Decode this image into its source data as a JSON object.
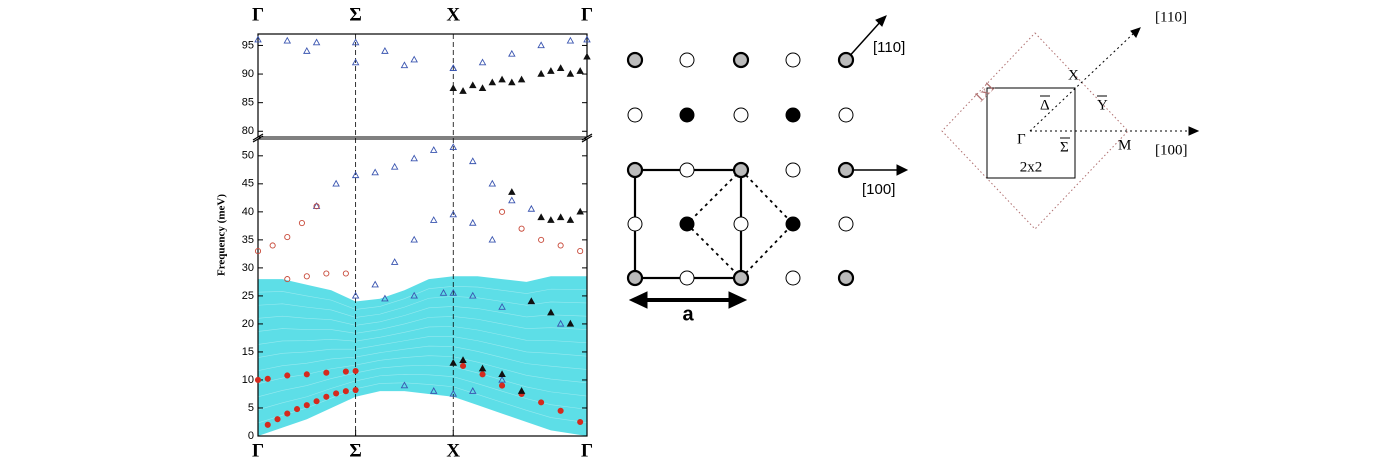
{
  "chart_data": {
    "type": "scatter",
    "y_label": "Frequency (meV)",
    "xlim": [
      0,
      3.37
    ],
    "xticks": [
      {
        "value": 0,
        "label": "Γ"
      },
      {
        "value": 1,
        "label": "Σ"
      },
      {
        "value": 2,
        "label": "X"
      },
      {
        "value": 3.37,
        "label": "Γ"
      }
    ],
    "ylim": [
      0,
      97
    ],
    "ybreak": [
      53,
      79
    ],
    "yticks": [
      0,
      5,
      10,
      15,
      20,
      25,
      30,
      35,
      40,
      45,
      50,
      80,
      85,
      90,
      95
    ],
    "band": {
      "color": "#27d3df",
      "x": [
        0,
        0.25,
        0.5,
        0.75,
        1,
        1.25,
        1.5,
        1.75,
        2,
        2.25,
        2.5,
        2.75,
        3,
        3.37
      ],
      "low": [
        0,
        1.5,
        3,
        5,
        7,
        8,
        8,
        7.5,
        7,
        5.5,
        4,
        2.5,
        1,
        0
      ],
      "high": [
        28,
        28,
        27,
        26,
        24,
        24.5,
        26,
        28,
        28.5,
        28.5,
        28,
        27.5,
        28.5,
        28.5
      ]
    },
    "series": [
      {
        "color": "#d42a1e",
        "marker": "circle-filled",
        "x": [
          0.1,
          0.2,
          0.3,
          0.4,
          0.5,
          0.6,
          0.7,
          0.8,
          0.9,
          1.0,
          0.0,
          0.1,
          0.3,
          0.5,
          0.7,
          0.9,
          1.0,
          2.1,
          2.3,
          2.5,
          2.7,
          2.9,
          3.1,
          3.3
        ],
        "values": [
          2,
          3,
          4,
          4.8,
          5.5,
          6.2,
          7,
          7.6,
          8,
          8.2,
          10,
          10.2,
          10.8,
          11,
          11.3,
          11.5,
          11.6,
          12.5,
          11,
          9,
          7.5,
          6,
          4.5,
          2.5
        ]
      },
      {
        "color": "#3a55b0",
        "marker": "triangle-open",
        "x": [
          0,
          0.3,
          0.6,
          1,
          1.3,
          1.6,
          2,
          2.3,
          2.6,
          2.9,
          3.2,
          3.37,
          0.5,
          1,
          1.5,
          2
        ],
        "values": [
          96,
          95.8,
          95.5,
          95.5,
          94,
          92.5,
          91,
          92,
          93.5,
          95,
          95.8,
          96,
          94,
          92,
          91.5,
          91
        ]
      },
      {
        "color": "#3a55b0",
        "marker": "triangle-open",
        "x": [
          0.6,
          0.8,
          1,
          1.2,
          1.4,
          1.6,
          1.8,
          2,
          2.2,
          2.4,
          2.6,
          2.8,
          1.2,
          1.4,
          1.6,
          1.8,
          2,
          2.2,
          2.4,
          1,
          1.3,
          1.6,
          1.9,
          2,
          2.2,
          2.5,
          2.8,
          3.1,
          1.5,
          1.8,
          2,
          2.2,
          2.5
        ],
        "values": [
          41,
          45,
          46.5,
          47,
          48,
          49.5,
          51,
          51.5,
          49,
          45,
          42,
          40.5,
          27,
          31,
          35,
          38.5,
          39.5,
          38,
          35,
          25,
          24.5,
          25,
          25.5,
          25.5,
          25,
          23,
          24,
          20,
          9,
          8,
          7.5,
          8,
          10
        ]
      },
      {
        "color": "#c84a3a",
        "marker": "circle-open",
        "x": [
          0,
          0.15,
          0.3,
          0.45,
          0.6,
          0.3,
          0.5,
          0.7,
          0.9,
          2.5,
          2.7,
          2.9,
          3.1,
          3.3
        ],
        "values": [
          33,
          34,
          35.5,
          38,
          41,
          28,
          28.5,
          29,
          29,
          40,
          37,
          35,
          34,
          33
        ]
      },
      {
        "color": "#111111",
        "marker": "triangle-filled",
        "x": [
          2.0,
          2.1,
          2.2,
          2.3,
          2.4,
          2.5,
          2.6,
          2.7,
          2.9,
          3.0,
          3.1,
          3.2,
          3.3,
          3.37,
          2.9,
          3.0,
          3.1,
          3.2,
          3.3,
          2.6,
          2.8,
          3.0,
          3.2,
          2.0,
          2.1,
          2.3,
          2.5,
          2.7
        ],
        "values": [
          87.5,
          87,
          88,
          87.5,
          88.5,
          89,
          88.5,
          89,
          90,
          90.5,
          91,
          90,
          90.5,
          93,
          39,
          38.5,
          39,
          38.5,
          40,
          43.5,
          24,
          22,
          20,
          13,
          13.5,
          12,
          11,
          8
        ]
      }
    ]
  },
  "lattice": {
    "dir_110": "[110]",
    "dir_100": "[100]",
    "lattice_constant": "a"
  },
  "brillouin_zone": {
    "cell_1x1": "1x1",
    "cell_2x2": "2x2",
    "dir_110": "[110]",
    "dir_100": "[100]",
    "point_x": "X",
    "point_y": "Y",
    "point_delta": "Δ",
    "point_gamma": "Γ",
    "point_sigma": "Σ",
    "point_m": "M"
  }
}
